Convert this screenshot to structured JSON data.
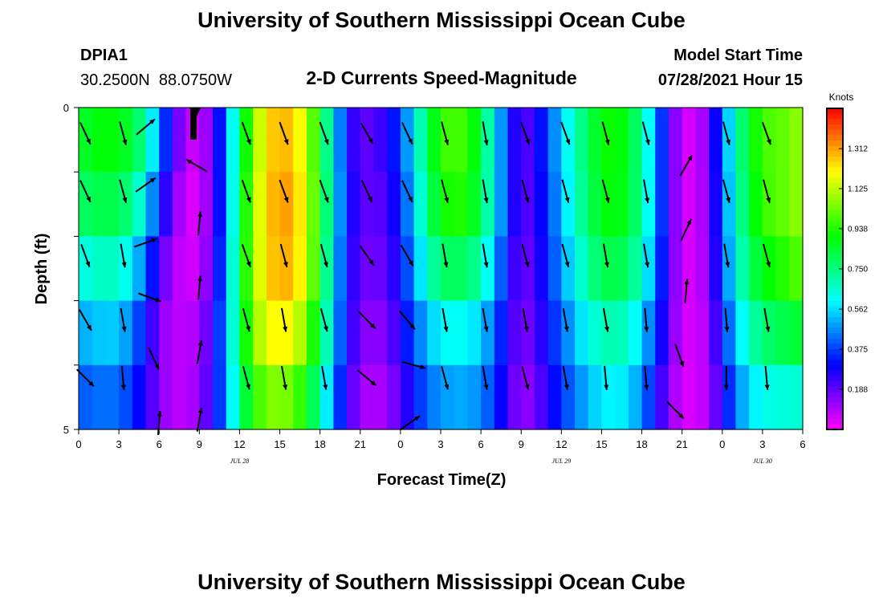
{
  "page": {
    "title_top": "University of Southern Mississippi Ocean Cube",
    "title_bottom": "University of Southern Mississippi Ocean Cube",
    "station_id": "DPIA1",
    "station_coords": "30.2500N  88.0750W",
    "chart_title": "2-D Currents Speed-Magnitude",
    "model_start_label": "Model Start Time",
    "model_start_value": "07/28/2021 Hour 15"
  },
  "chart_data": {
    "type": "heatmap",
    "title": "2-D Currents Speed-Magnitude",
    "xlabel": "Forecast Time(Z)",
    "ylabel": "Depth (ft)",
    "colorbar_unit": "Knots",
    "x_tick_labels": [
      "0",
      "3",
      "6",
      "9",
      "12",
      "15",
      "18",
      "21",
      "0",
      "3",
      "6",
      "9",
      "12",
      "15",
      "18",
      "21",
      "0",
      "3",
      "6"
    ],
    "x_tick_hours": [
      0,
      3,
      6,
      9,
      12,
      15,
      18,
      21,
      24,
      27,
      30,
      33,
      36,
      39,
      42,
      45,
      48,
      51,
      54
    ],
    "x_range_hours": [
      0,
      54
    ],
    "y_range_ft": [
      0,
      5
    ],
    "y_tick_labels": [
      "0",
      "5"
    ],
    "y_tick_values": [
      0,
      5
    ],
    "date_labels": [
      {
        "text": "JUL 28",
        "hour": 12
      },
      {
        "text": "JUL 29",
        "hour": 36
      },
      {
        "text": "JUL 30",
        "hour": 51
      }
    ],
    "colorbar_ticks": [
      "1.312",
      "1.125",
      "0.938",
      "0.750",
      "0.562",
      "0.375",
      "0.188"
    ],
    "colorbar_tick_values": [
      1.312,
      1.125,
      0.938,
      0.75,
      0.562,
      0.375,
      0.188
    ],
    "colorbar_range": [
      0.0,
      1.5
    ],
    "depth_levels": [
      0.5,
      1.5,
      2.5,
      3.5,
      4.5
    ],
    "hours": [
      0,
      1,
      2,
      3,
      4,
      5,
      6,
      7,
      8,
      9,
      10,
      11,
      12,
      13,
      14,
      15,
      16,
      17,
      18,
      19,
      20,
      21,
      22,
      23,
      24,
      25,
      26,
      27,
      28,
      29,
      30,
      31,
      32,
      33,
      34,
      35,
      36,
      37,
      38,
      39,
      40,
      41,
      42,
      43,
      44,
      45,
      46,
      47,
      48,
      49,
      50,
      51,
      52,
      53,
      54
    ],
    "speed_knots": [
      [
        0.84,
        0.88,
        0.9,
        0.88,
        0.84,
        0.7,
        0.46,
        0.24,
        0.08,
        0.05,
        0.18,
        0.45,
        0.78,
        1.05,
        1.23,
        1.3,
        1.26,
        1.12,
        0.88,
        0.6,
        0.3,
        0.18,
        0.2,
        0.26,
        0.38,
        0.58,
        0.8,
        0.95,
        1.0,
        0.95,
        0.82,
        0.6,
        0.35,
        0.18,
        0.25,
        0.38,
        0.55,
        0.68,
        0.8,
        0.9,
        0.92,
        0.86,
        0.72,
        0.5,
        0.22,
        0.06,
        0.04,
        0.16,
        0.42,
        0.68,
        0.86,
        0.98,
        1.0,
        1.02,
        1.1
      ],
      [
        0.78,
        0.8,
        0.82,
        0.8,
        0.74,
        0.58,
        0.34,
        0.16,
        0.05,
        0.04,
        0.18,
        0.45,
        0.8,
        1.08,
        1.25,
        1.32,
        1.3,
        1.15,
        0.9,
        0.62,
        0.32,
        0.2,
        0.18,
        0.22,
        0.34,
        0.54,
        0.76,
        0.9,
        0.95,
        0.92,
        0.8,
        0.6,
        0.35,
        0.18,
        0.24,
        0.36,
        0.52,
        0.66,
        0.78,
        0.88,
        0.9,
        0.85,
        0.72,
        0.5,
        0.22,
        0.06,
        0.04,
        0.15,
        0.4,
        0.66,
        0.84,
        0.96,
        1.0,
        1.02,
        1.1
      ],
      [
        0.62,
        0.65,
        0.68,
        0.66,
        0.58,
        0.42,
        0.22,
        0.1,
        0.05,
        0.06,
        0.2,
        0.48,
        0.82,
        1.08,
        1.24,
        1.3,
        1.28,
        1.14,
        0.88,
        0.58,
        0.3,
        0.18,
        0.16,
        0.2,
        0.3,
        0.48,
        0.66,
        0.78,
        0.8,
        0.78,
        0.7,
        0.52,
        0.3,
        0.16,
        0.22,
        0.34,
        0.48,
        0.6,
        0.72,
        0.8,
        0.82,
        0.78,
        0.66,
        0.46,
        0.2,
        0.06,
        0.04,
        0.14,
        0.38,
        0.62,
        0.78,
        0.88,
        0.92,
        0.96,
        1.02
      ],
      [
        0.5,
        0.52,
        0.55,
        0.53,
        0.45,
        0.3,
        0.15,
        0.08,
        0.08,
        0.1,
        0.24,
        0.5,
        0.8,
        1.04,
        1.18,
        1.22,
        1.18,
        1.04,
        0.82,
        0.55,
        0.28,
        0.16,
        0.12,
        0.16,
        0.26,
        0.4,
        0.52,
        0.6,
        0.62,
        0.6,
        0.55,
        0.42,
        0.26,
        0.14,
        0.2,
        0.3,
        0.42,
        0.52,
        0.62,
        0.68,
        0.7,
        0.66,
        0.55,
        0.38,
        0.18,
        0.06,
        0.04,
        0.12,
        0.32,
        0.54,
        0.68,
        0.76,
        0.8,
        0.82,
        0.86
      ],
      [
        0.4,
        0.42,
        0.44,
        0.42,
        0.36,
        0.25,
        0.15,
        0.08,
        0.08,
        0.12,
        0.25,
        0.48,
        0.74,
        0.94,
        1.04,
        1.06,
        1.02,
        0.9,
        0.7,
        0.46,
        0.24,
        0.12,
        0.08,
        0.12,
        0.2,
        0.32,
        0.42,
        0.48,
        0.5,
        0.5,
        0.46,
        0.36,
        0.22,
        0.12,
        0.16,
        0.26,
        0.36,
        0.44,
        0.52,
        0.58,
        0.6,
        0.56,
        0.46,
        0.3,
        0.14,
        0.05,
        0.04,
        0.1,
        0.26,
        0.44,
        0.56,
        0.62,
        0.64,
        0.64,
        0.66
      ]
    ],
    "vectors": [
      {
        "hour": 0.5,
        "depth": 0.4,
        "angle_deg": -65
      },
      {
        "hour": 3.3,
        "depth": 0.4,
        "angle_deg": -75
      },
      {
        "hour": 5.0,
        "depth": 0.3,
        "angle_deg": 40
      },
      {
        "hour": 12.5,
        "depth": 0.4,
        "angle_deg": -70
      },
      {
        "hour": 15.3,
        "depth": 0.4,
        "angle_deg": -70
      },
      {
        "hour": 18.3,
        "depth": 0.4,
        "angle_deg": -70
      },
      {
        "hour": 21.5,
        "depth": 0.4,
        "angle_deg": -60
      },
      {
        "hour": 24.5,
        "depth": 0.4,
        "angle_deg": -65
      },
      {
        "hour": 27.3,
        "depth": 0.4,
        "angle_deg": -75
      },
      {
        "hour": 30.3,
        "depth": 0.4,
        "angle_deg": -80
      },
      {
        "hour": 33.3,
        "depth": 0.4,
        "angle_deg": -70
      },
      {
        "hour": 36.3,
        "depth": 0.4,
        "angle_deg": -70
      },
      {
        "hour": 39.3,
        "depth": 0.4,
        "angle_deg": -75
      },
      {
        "hour": 42.3,
        "depth": 0.4,
        "angle_deg": -75
      },
      {
        "hour": 48.3,
        "depth": 0.4,
        "angle_deg": -75
      },
      {
        "hour": 51.3,
        "depth": 0.4,
        "angle_deg": -70
      },
      {
        "hour": 0.5,
        "depth": 1.3,
        "angle_deg": -65
      },
      {
        "hour": 3.3,
        "depth": 1.3,
        "angle_deg": -75
      },
      {
        "hour": 5.0,
        "depth": 1.2,
        "angle_deg": 35
      },
      {
        "hour": 8.8,
        "depth": 0.9,
        "angle_deg": 150
      },
      {
        "hour": 12.5,
        "depth": 1.3,
        "angle_deg": -70
      },
      {
        "hour": 15.3,
        "depth": 1.3,
        "angle_deg": -70
      },
      {
        "hour": 18.3,
        "depth": 1.3,
        "angle_deg": -70
      },
      {
        "hour": 21.5,
        "depth": 1.3,
        "angle_deg": -65
      },
      {
        "hour": 24.5,
        "depth": 1.3,
        "angle_deg": -65
      },
      {
        "hour": 27.3,
        "depth": 1.3,
        "angle_deg": -75
      },
      {
        "hour": 30.3,
        "depth": 1.3,
        "angle_deg": -80
      },
      {
        "hour": 33.3,
        "depth": 1.3,
        "angle_deg": -75
      },
      {
        "hour": 36.3,
        "depth": 1.3,
        "angle_deg": -75
      },
      {
        "hour": 39.3,
        "depth": 1.3,
        "angle_deg": -75
      },
      {
        "hour": 42.3,
        "depth": 1.3,
        "angle_deg": -80
      },
      {
        "hour": 45.3,
        "depth": 0.9,
        "angle_deg": 60
      },
      {
        "hour": 48.3,
        "depth": 1.3,
        "angle_deg": -75
      },
      {
        "hour": 51.3,
        "depth": 1.3,
        "angle_deg": -75
      },
      {
        "hour": 0.5,
        "depth": 2.3,
        "angle_deg": -70
      },
      {
        "hour": 3.3,
        "depth": 2.3,
        "angle_deg": -80
      },
      {
        "hour": 5.0,
        "depth": 2.1,
        "angle_deg": 20
      },
      {
        "hour": 9.0,
        "depth": 1.8,
        "angle_deg": 85
      },
      {
        "hour": 12.5,
        "depth": 2.3,
        "angle_deg": -70
      },
      {
        "hour": 15.3,
        "depth": 2.3,
        "angle_deg": -75
      },
      {
        "hour": 18.3,
        "depth": 2.3,
        "angle_deg": -75
      },
      {
        "hour": 21.5,
        "depth": 2.3,
        "angle_deg": -55
      },
      {
        "hour": 24.5,
        "depth": 2.3,
        "angle_deg": -60
      },
      {
        "hour": 27.3,
        "depth": 2.3,
        "angle_deg": -80
      },
      {
        "hour": 30.3,
        "depth": 2.3,
        "angle_deg": -80
      },
      {
        "hour": 33.3,
        "depth": 2.3,
        "angle_deg": -75
      },
      {
        "hour": 36.3,
        "depth": 2.3,
        "angle_deg": -75
      },
      {
        "hour": 39.3,
        "depth": 2.3,
        "angle_deg": -80
      },
      {
        "hour": 42.3,
        "depth": 2.3,
        "angle_deg": -80
      },
      {
        "hour": 45.3,
        "depth": 1.9,
        "angle_deg": 65
      },
      {
        "hour": 48.3,
        "depth": 2.3,
        "angle_deg": -80
      },
      {
        "hour": 51.3,
        "depth": 2.3,
        "angle_deg": -75
      },
      {
        "hour": 0.5,
        "depth": 3.3,
        "angle_deg": -60
      },
      {
        "hour": 3.3,
        "depth": 3.3,
        "angle_deg": -80
      },
      {
        "hour": 5.3,
        "depth": 2.95,
        "angle_deg": -20
      },
      {
        "hour": 9.0,
        "depth": 2.8,
        "angle_deg": 85
      },
      {
        "hour": 12.5,
        "depth": 3.3,
        "angle_deg": -75
      },
      {
        "hour": 15.3,
        "depth": 3.3,
        "angle_deg": -80
      },
      {
        "hour": 18.3,
        "depth": 3.3,
        "angle_deg": -75
      },
      {
        "hour": 21.5,
        "depth": 3.3,
        "angle_deg": -45
      },
      {
        "hour": 24.5,
        "depth": 3.3,
        "angle_deg": -50
      },
      {
        "hour": 27.3,
        "depth": 3.3,
        "angle_deg": -80
      },
      {
        "hour": 30.3,
        "depth": 3.3,
        "angle_deg": -80
      },
      {
        "hour": 33.3,
        "depth": 3.3,
        "angle_deg": -80
      },
      {
        "hour": 36.3,
        "depth": 3.3,
        "angle_deg": -80
      },
      {
        "hour": 39.3,
        "depth": 3.3,
        "angle_deg": -80
      },
      {
        "hour": 42.3,
        "depth": 3.3,
        "angle_deg": -85
      },
      {
        "hour": 45.3,
        "depth": 2.85,
        "angle_deg": 85
      },
      {
        "hour": 48.3,
        "depth": 3.3,
        "angle_deg": -85
      },
      {
        "hour": 51.3,
        "depth": 3.3,
        "angle_deg": -80
      },
      {
        "hour": 0.5,
        "depth": 4.2,
        "angle_deg": -45
      },
      {
        "hour": 3.3,
        "depth": 4.2,
        "angle_deg": -85
      },
      {
        "hour": 5.6,
        "depth": 3.9,
        "angle_deg": -65
      },
      {
        "hour": 9.0,
        "depth": 3.8,
        "angle_deg": 80
      },
      {
        "hour": 12.5,
        "depth": 4.2,
        "angle_deg": -75
      },
      {
        "hour": 15.3,
        "depth": 4.2,
        "angle_deg": -80
      },
      {
        "hour": 18.3,
        "depth": 4.2,
        "angle_deg": -80
      },
      {
        "hour": 21.5,
        "depth": 4.2,
        "angle_deg": -40
      },
      {
        "hour": 25.0,
        "depth": 4.0,
        "angle_deg": -15
      },
      {
        "hour": 27.3,
        "depth": 4.2,
        "angle_deg": -75
      },
      {
        "hour": 30.3,
        "depth": 4.2,
        "angle_deg": -80
      },
      {
        "hour": 33.3,
        "depth": 4.2,
        "angle_deg": -75
      },
      {
        "hour": 36.3,
        "depth": 4.2,
        "angle_deg": -80
      },
      {
        "hour": 39.3,
        "depth": 4.2,
        "angle_deg": -85
      },
      {
        "hour": 42.3,
        "depth": 4.2,
        "angle_deg": -85
      },
      {
        "hour": 44.8,
        "depth": 3.85,
        "angle_deg": -70
      },
      {
        "hour": 48.3,
        "depth": 4.2,
        "angle_deg": -90
      },
      {
        "hour": 51.3,
        "depth": 4.2,
        "angle_deg": -85
      },
      {
        "hour": 6.0,
        "depth": 4.9,
        "angle_deg": 85
      },
      {
        "hour": 9.0,
        "depth": 4.85,
        "angle_deg": 80
      },
      {
        "hour": 24.7,
        "depth": 4.9,
        "angle_deg": 35
      },
      {
        "hour": 44.5,
        "depth": 4.7,
        "angle_deg": -45
      }
    ]
  }
}
